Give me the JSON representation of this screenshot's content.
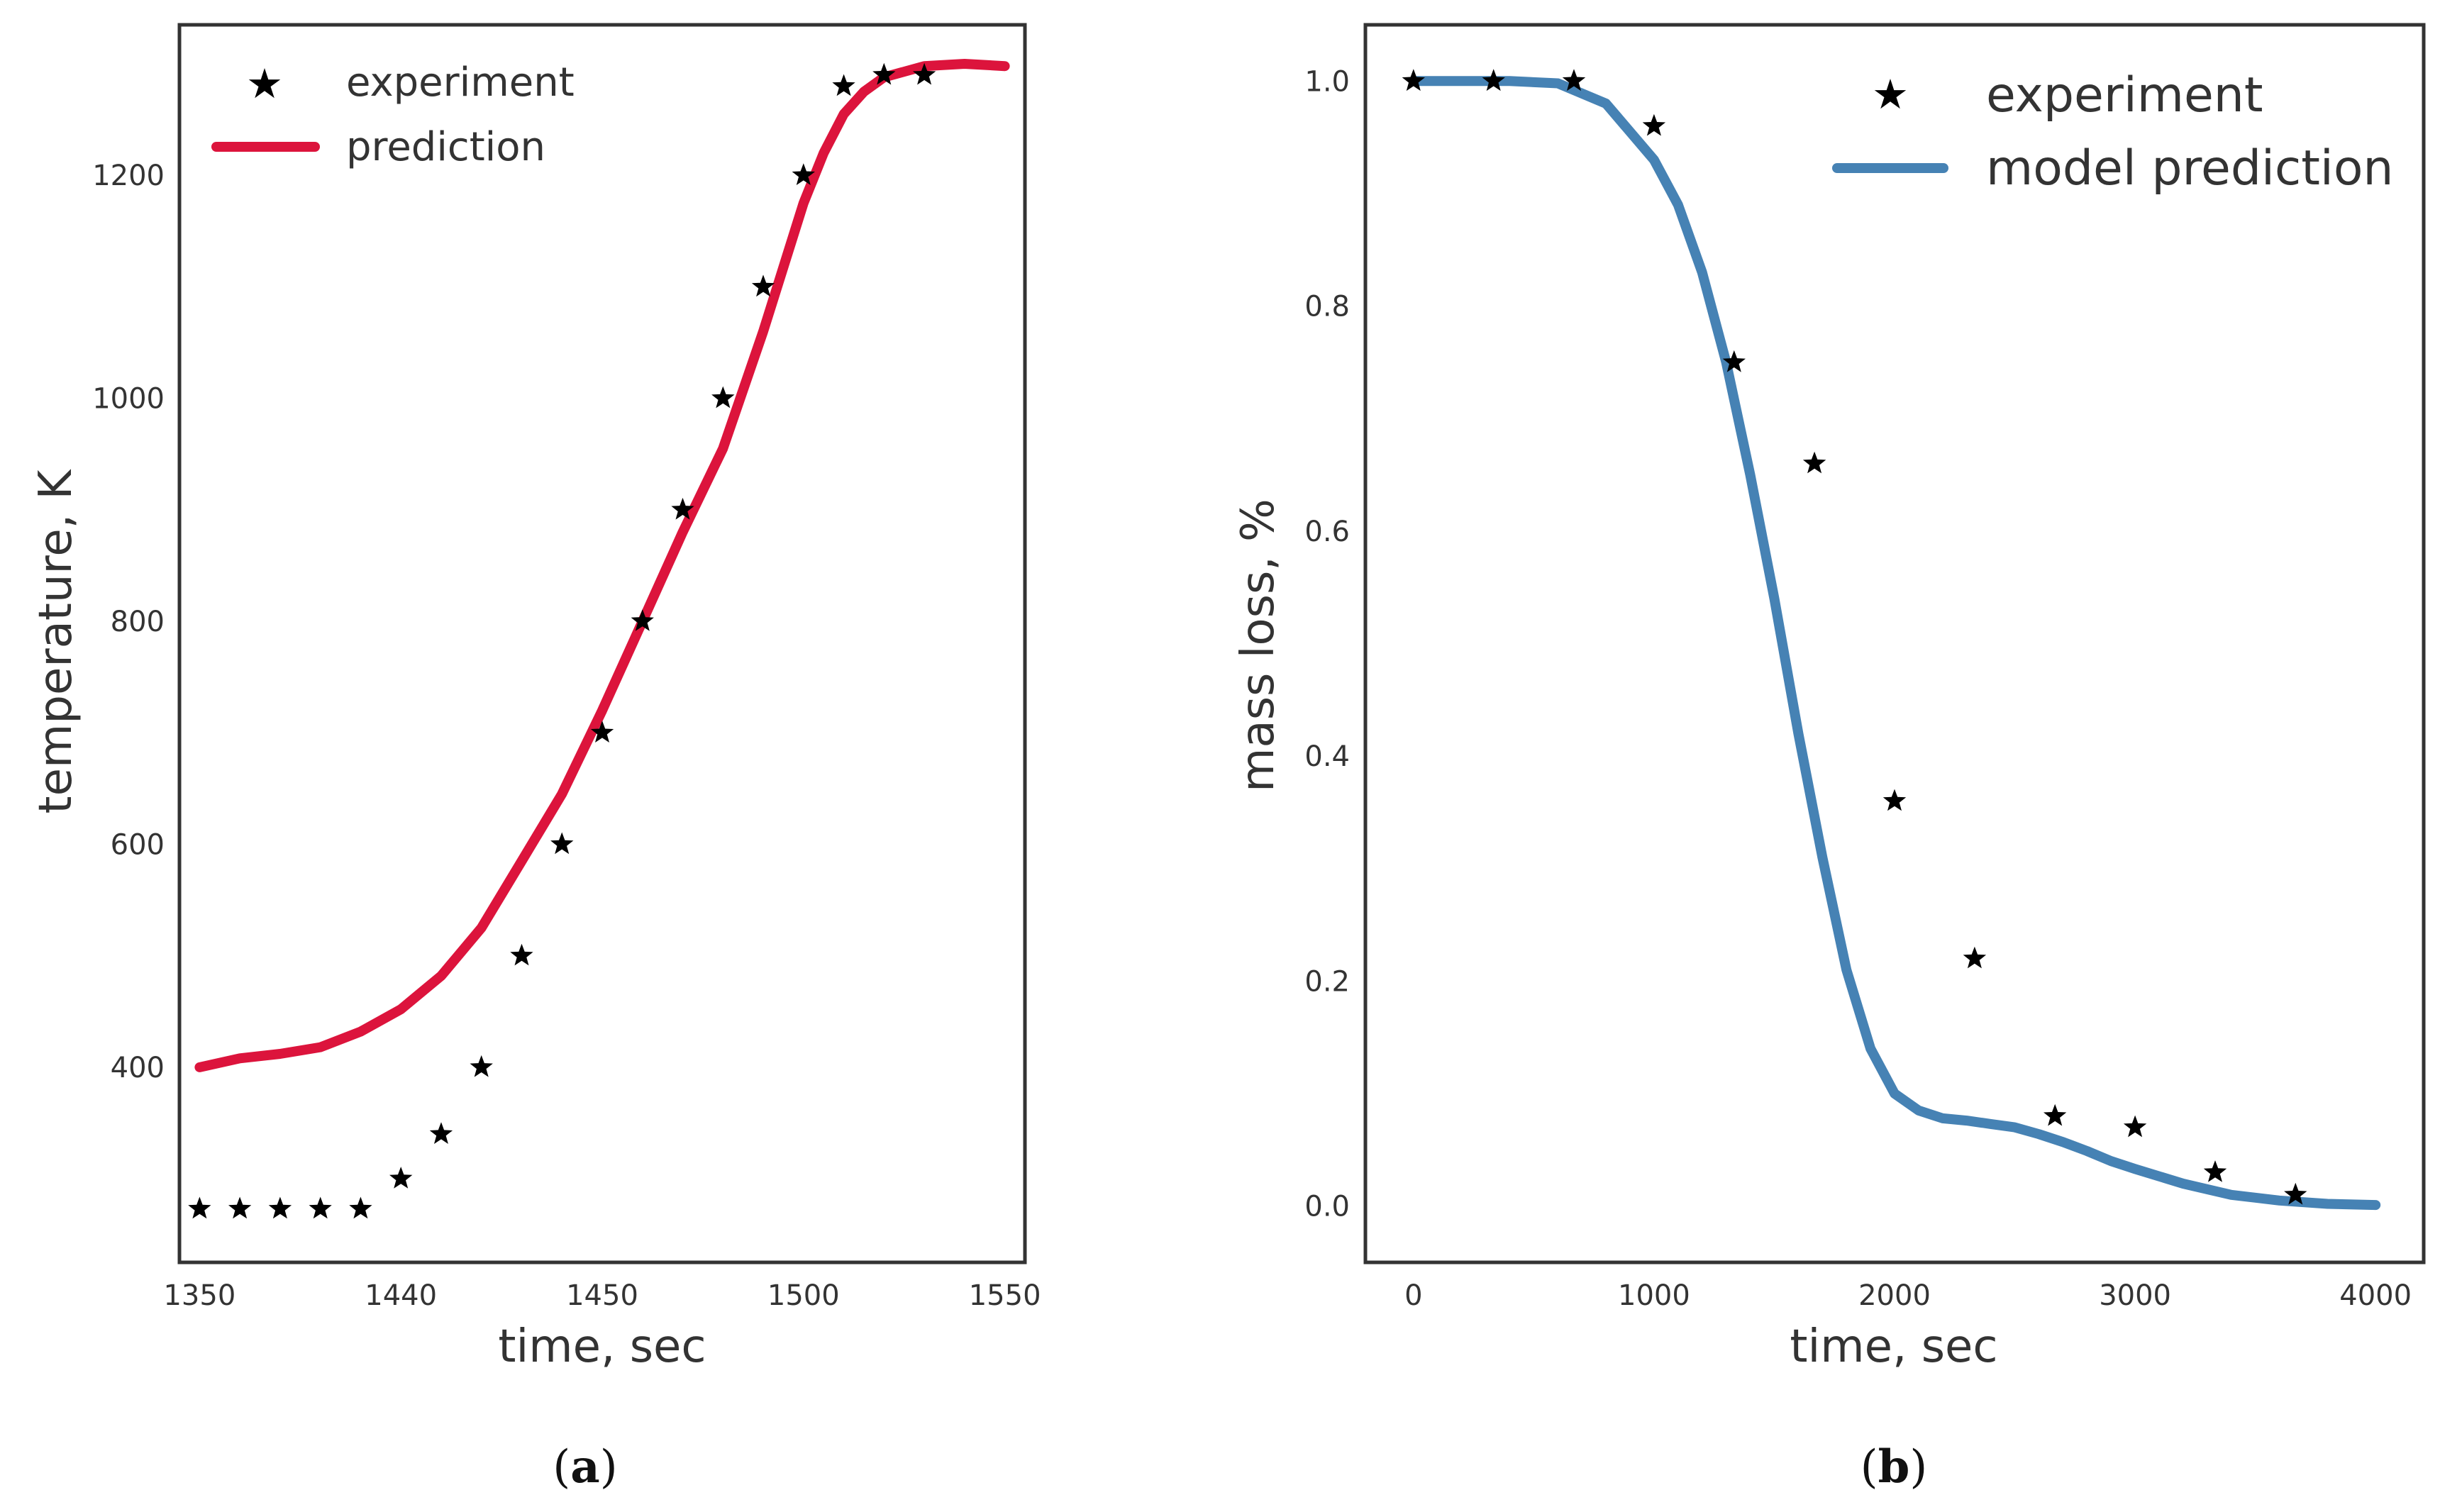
{
  "chart_data": [
    {
      "type": "line",
      "caption": "a",
      "xlabel": "time, sec",
      "ylabel": "temperature, K",
      "x_tick_labels": [
        "1350",
        "1440",
        "1450",
        "1500",
        "1550"
      ],
      "y_ticks": [
        400,
        600,
        800,
        1000,
        1200
      ],
      "x_display_range": [
        1345,
        1555
      ],
      "ylim": [
        225,
        1335
      ],
      "grid": false,
      "legend_position": "top-left",
      "series": [
        {
          "name": "experiment",
          "style": "star-markers",
          "color": "#000000",
          "x": [
            1350,
            1360,
            1370,
            1380,
            1390,
            1400,
            1410,
            1420,
            1430,
            1440,
            1450,
            1460,
            1470,
            1480,
            1490,
            1500,
            1510,
            1520,
            1530
          ],
          "y": [
            273,
            273,
            273,
            273,
            273,
            300,
            340,
            400,
            500,
            600,
            700,
            800,
            900,
            1000,
            1100,
            1200,
            1280,
            1290,
            1290
          ]
        },
        {
          "name": "prediction",
          "style": "line",
          "color": "#DC143C",
          "x": [
            1350,
            1360,
            1370,
            1380,
            1390,
            1400,
            1410,
            1420,
            1430,
            1440,
            1450,
            1460,
            1470,
            1480,
            1490,
            1500,
            1505,
            1510,
            1515,
            1520,
            1530,
            1540,
            1550
          ],
          "y": [
            400,
            408,
            412,
            418,
            432,
            452,
            482,
            525,
            585,
            645,
            720,
            800,
            880,
            955,
            1060,
            1175,
            1220,
            1255,
            1275,
            1288,
            1298,
            1300,
            1298
          ]
        }
      ]
    },
    {
      "type": "line",
      "caption": "b",
      "xlabel": "time, sec",
      "ylabel": "mass loss, %",
      "x_tick_labels": [
        "0",
        "1000",
        "2000",
        "3000",
        "4000"
      ],
      "x_ticks": [
        0,
        1000,
        2000,
        3000,
        4000
      ],
      "y_tick_labels": [
        "0.0",
        "0.2",
        "0.4",
        "0.6",
        "0.8",
        "1.0"
      ],
      "y_ticks": [
        0.0,
        0.2,
        0.4,
        0.6,
        0.8,
        1.0
      ],
      "xlim": [
        -200,
        4200
      ],
      "ylim": [
        -0.05,
        1.05
      ],
      "grid": false,
      "legend_position": "top-right",
      "series": [
        {
          "name": "experiment",
          "style": "star-markers",
          "color": "#000000",
          "x": [
            0,
            333,
            667,
            1000,
            1333,
            1667,
            2000,
            2333,
            2667,
            3000,
            3333,
            3667
          ],
          "y": [
            1.0,
            1.0,
            1.0,
            0.96,
            0.75,
            0.66,
            0.36,
            0.22,
            0.08,
            0.07,
            0.03,
            0.01
          ]
        },
        {
          "name": "model prediction",
          "style": "line",
          "color": "#4682B4",
          "x": [
            0,
            200,
            400,
            600,
            800,
            1000,
            1100,
            1200,
            1300,
            1400,
            1500,
            1600,
            1700,
            1800,
            1900,
            2000,
            2100,
            2200,
            2300,
            2400,
            2500,
            2600,
            2700,
            2800,
            2900,
            3000,
            3200,
            3400,
            3600,
            3800,
            4000
          ],
          "y": [
            1.0,
            1.0,
            1.0,
            0.998,
            0.98,
            0.93,
            0.89,
            0.83,
            0.75,
            0.65,
            0.54,
            0.42,
            0.31,
            0.21,
            0.14,
            0.1,
            0.085,
            0.078,
            0.076,
            0.073,
            0.07,
            0.064,
            0.057,
            0.049,
            0.04,
            0.033,
            0.02,
            0.01,
            0.005,
            0.002,
            0.001
          ]
        }
      ]
    }
  ]
}
